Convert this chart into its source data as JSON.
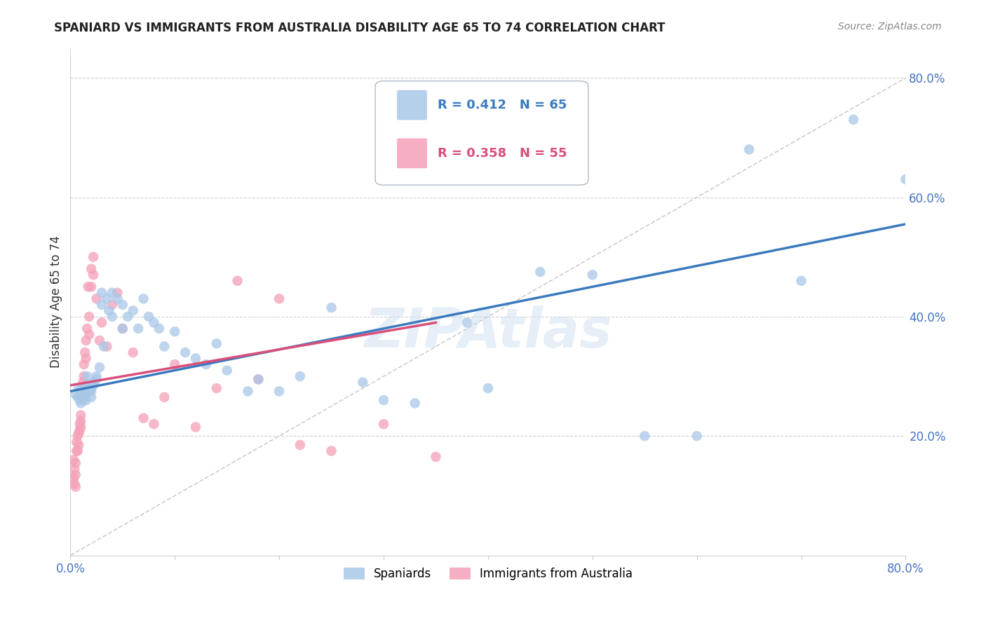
{
  "title": "SPANIARD VS IMMIGRANTS FROM AUSTRALIA DISABILITY AGE 65 TO 74 CORRELATION CHART",
  "source": "Source: ZipAtlas.com",
  "ylabel": "Disability Age 65 to 74",
  "xlim": [
    0.0,
    0.8
  ],
  "ylim": [
    0.0,
    0.85
  ],
  "xticks": [
    0.0,
    0.1,
    0.2,
    0.3,
    0.4,
    0.5,
    0.6,
    0.7,
    0.8
  ],
  "xticklabels": [
    "0.0%",
    "",
    "",
    "",
    "",
    "",
    "",
    "",
    "80.0%"
  ],
  "ytick_positions": [
    0.2,
    0.4,
    0.6,
    0.8
  ],
  "ytick_labels": [
    "20.0%",
    "40.0%",
    "60.0%",
    "80.0%"
  ],
  "spaniards_R": 0.412,
  "spaniards_N": 65,
  "immigrants_R": 0.358,
  "immigrants_N": 55,
  "blue_color": "#a8c8e8",
  "pink_color": "#f4a0b8",
  "blue_line_color": "#3a7abf",
  "pink_line_color": "#d94f7a",
  "diagonal_color": "#c8c8c8",
  "legend_blue_label": "Spaniards",
  "legend_pink_label": "Immigrants from Australia",
  "watermark": "ZIPAtlas",
  "spaniards_x": [
    0.005,
    0.007,
    0.008,
    0.009,
    0.01,
    0.01,
    0.01,
    0.012,
    0.012,
    0.013,
    0.015,
    0.015,
    0.016,
    0.018,
    0.018,
    0.02,
    0.02,
    0.02,
    0.022,
    0.022,
    0.025,
    0.025,
    0.028,
    0.03,
    0.03,
    0.032,
    0.035,
    0.037,
    0.04,
    0.04,
    0.045,
    0.05,
    0.05,
    0.055,
    0.06,
    0.065,
    0.07,
    0.075,
    0.08,
    0.085,
    0.09,
    0.1,
    0.11,
    0.12,
    0.13,
    0.14,
    0.15,
    0.17,
    0.18,
    0.2,
    0.22,
    0.25,
    0.28,
    0.3,
    0.33,
    0.38,
    0.4,
    0.45,
    0.5,
    0.55,
    0.6,
    0.65,
    0.7,
    0.75,
    0.8
  ],
  "spaniards_y": [
    0.27,
    0.265,
    0.28,
    0.26,
    0.27,
    0.265,
    0.255,
    0.275,
    0.26,
    0.28,
    0.27,
    0.26,
    0.3,
    0.285,
    0.275,
    0.28,
    0.275,
    0.265,
    0.29,
    0.285,
    0.3,
    0.295,
    0.315,
    0.44,
    0.42,
    0.35,
    0.43,
    0.41,
    0.44,
    0.4,
    0.43,
    0.42,
    0.38,
    0.4,
    0.41,
    0.38,
    0.43,
    0.4,
    0.39,
    0.38,
    0.35,
    0.375,
    0.34,
    0.33,
    0.32,
    0.355,
    0.31,
    0.275,
    0.295,
    0.275,
    0.3,
    0.415,
    0.29,
    0.26,
    0.255,
    0.39,
    0.28,
    0.475,
    0.47,
    0.2,
    0.2,
    0.68,
    0.46,
    0.73,
    0.63
  ],
  "immigrants_x": [
    0.003,
    0.003,
    0.004,
    0.004,
    0.005,
    0.005,
    0.005,
    0.006,
    0.006,
    0.007,
    0.007,
    0.008,
    0.008,
    0.009,
    0.009,
    0.01,
    0.01,
    0.01,
    0.011,
    0.012,
    0.012,
    0.013,
    0.013,
    0.014,
    0.015,
    0.015,
    0.016,
    0.017,
    0.018,
    0.018,
    0.02,
    0.02,
    0.022,
    0.022,
    0.025,
    0.028,
    0.03,
    0.035,
    0.04,
    0.045,
    0.05,
    0.06,
    0.07,
    0.08,
    0.09,
    0.1,
    0.12,
    0.14,
    0.16,
    0.18,
    0.2,
    0.22,
    0.25,
    0.3,
    0.35
  ],
  "immigrants_y": [
    0.16,
    0.13,
    0.145,
    0.12,
    0.155,
    0.135,
    0.115,
    0.175,
    0.19,
    0.2,
    0.175,
    0.205,
    0.185,
    0.22,
    0.21,
    0.235,
    0.225,
    0.215,
    0.28,
    0.29,
    0.265,
    0.32,
    0.3,
    0.34,
    0.36,
    0.33,
    0.38,
    0.45,
    0.4,
    0.37,
    0.48,
    0.45,
    0.5,
    0.47,
    0.43,
    0.36,
    0.39,
    0.35,
    0.42,
    0.44,
    0.38,
    0.34,
    0.23,
    0.22,
    0.265,
    0.32,
    0.215,
    0.28,
    0.46,
    0.295,
    0.43,
    0.185,
    0.175,
    0.22,
    0.165
  ],
  "blue_line_x0": 0.0,
  "blue_line_y0": 0.275,
  "blue_line_x1": 0.8,
  "blue_line_y1": 0.555,
  "pink_line_x0": 0.0,
  "pink_line_y0": 0.285,
  "pink_line_x1": 0.35,
  "pink_line_y1": 0.39
}
